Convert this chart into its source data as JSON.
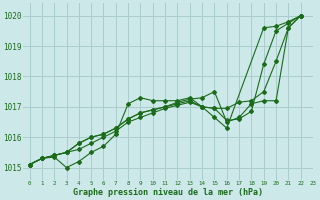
{
  "background_color": "#cce8e8",
  "grid_color": "#aacccc",
  "line_color": "#1a6b1a",
  "xlabel": "Graphe pression niveau de la mer (hPa)",
  "xlim": [
    -0.5,
    23
  ],
  "ylim": [
    1014.6,
    1020.4
  ],
  "yticks": [
    1015,
    1016,
    1017,
    1018,
    1019,
    1020
  ],
  "xticks": [
    0,
    1,
    2,
    3,
    4,
    5,
    6,
    7,
    8,
    9,
    10,
    11,
    12,
    13,
    14,
    15,
    16,
    17,
    18,
    19,
    20,
    21,
    22,
    23
  ],
  "series": [
    {
      "x": [
        0,
        1,
        2,
        3,
        4,
        5,
        6,
        7,
        8,
        9,
        10,
        11,
        12,
        13,
        14,
        15,
        16,
        19,
        20,
        21,
        22
      ],
      "y": [
        1015.1,
        1015.3,
        1015.35,
        1015.0,
        1015.2,
        1015.5,
        1015.7,
        1016.1,
        1017.1,
        1017.3,
        1017.2,
        1017.2,
        1017.2,
        1017.3,
        1017.0,
        1016.65,
        1016.3,
        1019.6,
        1019.65,
        1019.8,
        1020.0
      ]
    },
    {
      "x": [
        0,
        1,
        2,
        3,
        4,
        5,
        6,
        7,
        8,
        9,
        10,
        11,
        12,
        13,
        14,
        15,
        16,
        17,
        18,
        19,
        20,
        21,
        22
      ],
      "y": [
        1015.1,
        1015.3,
        1015.4,
        1015.5,
        1015.6,
        1015.8,
        1016.0,
        1016.2,
        1016.5,
        1016.65,
        1016.8,
        1016.95,
        1017.05,
        1017.15,
        1017.0,
        1016.95,
        1016.55,
        1016.6,
        1016.85,
        1018.4,
        1019.5,
        1019.75,
        1020.0
      ]
    },
    {
      "x": [
        0,
        1,
        2,
        3,
        4,
        5,
        6,
        7,
        8,
        9,
        10,
        11,
        12,
        13,
        14,
        15,
        16,
        17,
        18,
        19,
        20,
        21,
        22
      ],
      "y": [
        1015.1,
        1015.3,
        1015.4,
        1015.5,
        1015.8,
        1016.0,
        1016.1,
        1016.3,
        1016.6,
        1016.8,
        1016.9,
        1017.0,
        1017.1,
        1017.2,
        1017.0,
        1016.95,
        1016.95,
        1017.15,
        1017.2,
        1017.5,
        1018.5,
        1019.6,
        1020.0
      ]
    },
    {
      "x": [
        0,
        1,
        2,
        3,
        4,
        5,
        6,
        7,
        8,
        9,
        10,
        11,
        12,
        13,
        14,
        15,
        16,
        17,
        18,
        19,
        20,
        21,
        22
      ],
      "y": [
        1015.1,
        1015.3,
        1015.4,
        1015.5,
        1015.8,
        1016.0,
        1016.1,
        1016.3,
        1016.6,
        1016.8,
        1016.9,
        1017.0,
        1017.15,
        1017.25,
        1017.3,
        1017.5,
        1016.5,
        1016.65,
        1017.1,
        1017.2,
        1017.2,
        1019.6,
        1020.0
      ]
    }
  ]
}
